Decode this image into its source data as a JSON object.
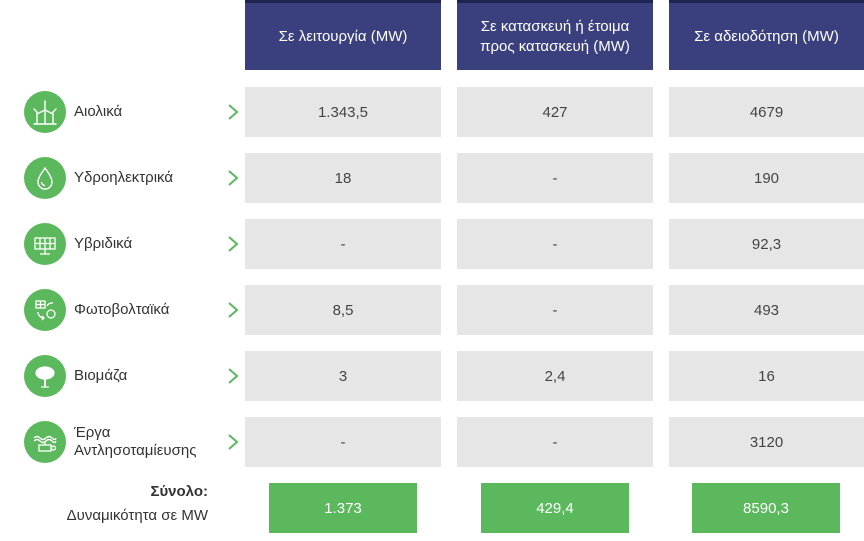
{
  "headers": {
    "operating": "Σε λειτουργία (MW)",
    "construction": "Σε κατασκευή ή έτοιμα προς κατασκευή (MW)",
    "licensing": "Σε αδειοδότηση (MW)"
  },
  "rows": [
    {
      "label": "Αιολικά",
      "icon": "wind-turbine-icon",
      "operating": "1.343,5",
      "construction": "427",
      "licensing": "4679"
    },
    {
      "label": "Υδροηλεκτρικά",
      "icon": "water-drop-icon",
      "operating": "18",
      "construction": "-",
      "licensing": "190"
    },
    {
      "label": "Υβριδικά",
      "icon": "solar-panel-icon",
      "operating": "-",
      "construction": "-",
      "licensing": "92,3"
    },
    {
      "label": "Φωτοβολταϊκά",
      "icon": "photovoltaic-icon",
      "operating": "8,5",
      "construction": "-",
      "licensing": "493"
    },
    {
      "label": "Βιομάζα",
      "icon": "tree-icon",
      "operating": "3",
      "construction": "2,4",
      "licensing": "16"
    },
    {
      "label": "Έργα Αντλησοταμίευσης",
      "icon": "pumped-storage-icon",
      "operating": "-",
      "construction": "-",
      "licensing": "3120"
    }
  ],
  "totals": {
    "title": "Σύνολο:",
    "subtitle": "Δυναμικότητα σε MW",
    "operating": "1.373",
    "construction": "429,4",
    "licensing": "8590,3"
  },
  "colors": {
    "header_bg": "#3a3f7d",
    "accent_green": "#5cb85c",
    "cell_bg": "#e6e6e6"
  }
}
